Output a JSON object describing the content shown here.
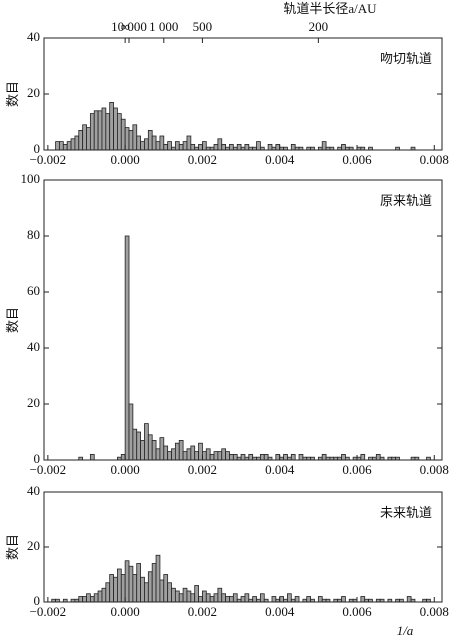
{
  "chart_data": [
    {
      "type": "histogram",
      "label": "吻切轨道",
      "y_label": "数目",
      "x2_label": "轨道半长径a/AU",
      "x2ticks": [
        {
          "value": null,
          "label": "∞"
        },
        {
          "value": 10000,
          "label": "10 000"
        },
        {
          "value": 1000,
          "label": "1 000"
        },
        500,
        200
      ],
      "x2scale": "reciprocal",
      "bins": [
        -0.002,
        -0.0019,
        -0.0018,
        -0.0017,
        -0.0016,
        -0.0015,
        -0.0014,
        -0.0013,
        -0.0012,
        -0.0011,
        -0.001,
        -0.0009,
        -0.0008,
        -0.0007,
        -0.0006,
        -0.0005,
        -0.0004,
        -0.0003,
        -0.0002,
        -0.0001,
        0,
        0.0001,
        0.0002,
        0.0003,
        0.0004,
        0.0005,
        0.0006,
        0.0007,
        0.0008,
        0.0009,
        0.001,
        0.0011,
        0.0012,
        0.0013,
        0.0014,
        0.0015,
        0.0016,
        0.0017,
        0.0018,
        0.0019,
        0.002,
        0.0021,
        0.0022,
        0.0023,
        0.0024,
        0.0025,
        0.0026,
        0.0027,
        0.0028,
        0.0029,
        0.003,
        0.0031,
        0.0032,
        0.0033,
        0.0034,
        0.0035,
        0.0036,
        0.0037,
        0.0038,
        0.0039,
        0.004,
        0.0041,
        0.0042,
        0.0043,
        0.0044,
        0.0045,
        0.0046,
        0.0047,
        0.0048,
        0.0049,
        0.005,
        0.0051,
        0.0052,
        0.0053,
        0.0054,
        0.0055,
        0.0056,
        0.0057,
        0.0058,
        0.0059,
        0.006,
        0.0061,
        0.0062,
        0.0063,
        0.0064,
        0.0065,
        0.0066,
        0.0067,
        0.0068,
        0.0069,
        0.007,
        0.0071,
        0.0072,
        0.0073,
        0.0074,
        0.0075,
        0.0076,
        0.0077,
        0.0078,
        0.0079,
        0.008
      ],
      "values": [
        0,
        0,
        3,
        3,
        2,
        3,
        4,
        5,
        7,
        9,
        8,
        13,
        14,
        14,
        15,
        13,
        17,
        15,
        13,
        11,
        8,
        7,
        9,
        5,
        3,
        4,
        7,
        5,
        3,
        5,
        2,
        3,
        1,
        3,
        2,
        3,
        5,
        2,
        1,
        2,
        3,
        1,
        1,
        2,
        4,
        2,
        1,
        2,
        1,
        2,
        1,
        2,
        1,
        1,
        3,
        1,
        0,
        2,
        1,
        2,
        1,
        1,
        0,
        2,
        1,
        1,
        0,
        1,
        1,
        0,
        1,
        3,
        1,
        1,
        0,
        1,
        2,
        1,
        1,
        0,
        1,
        1,
        0,
        1,
        0,
        0,
        0,
        0,
        0,
        0,
        1,
        0,
        0,
        0,
        1,
        0,
        0,
        0,
        0,
        0
      ],
      "color": "#a0a0a0",
      "xlim": [
        -0.0021,
        0.0082
      ],
      "ylim": [
        0,
        40
      ],
      "yticks": [
        0,
        20,
        40
      ],
      "xticks": [
        {
          "value": -0.002,
          "label": "−0.002"
        },
        {
          "value": 0,
          "label": "0.000"
        },
        0.002,
        0.004,
        0.006,
        0.008
      ]
    },
    {
      "type": "histogram",
      "label": "原来轨道",
      "y_label": "数目",
      "bins": [
        -0.002,
        -0.0019,
        -0.0018,
        -0.0017,
        -0.0016,
        -0.0015,
        -0.0014,
        -0.0013,
        -0.0012,
        -0.0011,
        -0.001,
        -0.0009,
        -0.0008,
        -0.0007,
        -0.0006,
        -0.0005,
        -0.0004,
        -0.0003,
        -0.0002,
        -0.0001,
        0,
        0.0001,
        0.0002,
        0.0003,
        0.0004,
        0.0005,
        0.0006,
        0.0007,
        0.0008,
        0.0009,
        0.001,
        0.0011,
        0.0012,
        0.0013,
        0.0014,
        0.0015,
        0.0016,
        0.0017,
        0.0018,
        0.0019,
        0.002,
        0.0021,
        0.0022,
        0.0023,
        0.0024,
        0.0025,
        0.0026,
        0.0027,
        0.0028,
        0.0029,
        0.003,
        0.0031,
        0.0032,
        0.0033,
        0.0034,
        0.0035,
        0.0036,
        0.0037,
        0.0038,
        0.0039,
        0.004,
        0.0041,
        0.0042,
        0.0043,
        0.0044,
        0.0045,
        0.0046,
        0.0047,
        0.0048,
        0.0049,
        0.005,
        0.0051,
        0.0052,
        0.0053,
        0.0054,
        0.0055,
        0.0056,
        0.0057,
        0.0058,
        0.0059,
        0.006,
        0.0061,
        0.0062,
        0.0063,
        0.0064,
        0.0065,
        0.0066,
        0.0067,
        0.0068,
        0.0069,
        0.007,
        0.0071,
        0.0072,
        0.0073,
        0.0074,
        0.0075,
        0.0076,
        0.0077,
        0.0078,
        0.0079,
        0.008
      ],
      "values": [
        0,
        0,
        0,
        0,
        0,
        0,
        0,
        0,
        1,
        0,
        0,
        2,
        0,
        0,
        0,
        0,
        0,
        0,
        1,
        2,
        80,
        20,
        11,
        10,
        7,
        13,
        9,
        7,
        4,
        8,
        5,
        3,
        4,
        6,
        7,
        3,
        4,
        5,
        3,
        6,
        3,
        4,
        2,
        3,
        3,
        4,
        3,
        2,
        2,
        1,
        2,
        1,
        2,
        1,
        1,
        2,
        2,
        1,
        0,
        2,
        1,
        2,
        1,
        2,
        0,
        2,
        1,
        1,
        1,
        0,
        1,
        2,
        1,
        1,
        1,
        1,
        2,
        1,
        0,
        1,
        1,
        2,
        0,
        1,
        1,
        2,
        1,
        0,
        1,
        1,
        1,
        0,
        0,
        0,
        1,
        1,
        0,
        0,
        1,
        0
      ],
      "color": "#a0a0a0",
      "xlim": [
        -0.0021,
        0.0082
      ],
      "ylim": [
        0,
        100
      ],
      "yticks": [
        0,
        20,
        40,
        60,
        80,
        100
      ],
      "xticks": [
        {
          "value": -0.002,
          "label": "−0.002"
        },
        {
          "value": 0,
          "label": "0.000"
        },
        0.002,
        0.004,
        0.006,
        0.008
      ]
    },
    {
      "type": "histogram",
      "label": "未来轨道",
      "y_label": "数目",
      "x_label": "1/a",
      "bins": [
        -0.002,
        -0.0019,
        -0.0018,
        -0.0017,
        -0.0016,
        -0.0015,
        -0.0014,
        -0.0013,
        -0.0012,
        -0.0011,
        -0.001,
        -0.0009,
        -0.0008,
        -0.0007,
        -0.0006,
        -0.0005,
        -0.0004,
        -0.0003,
        -0.0002,
        -0.0001,
        0,
        0.0001,
        0.0002,
        0.0003,
        0.0004,
        0.0005,
        0.0006,
        0.0007,
        0.0008,
        0.0009,
        0.001,
        0.0011,
        0.0012,
        0.0013,
        0.0014,
        0.0015,
        0.0016,
        0.0017,
        0.0018,
        0.0019,
        0.002,
        0.0021,
        0.0022,
        0.0023,
        0.0024,
        0.0025,
        0.0026,
        0.0027,
        0.0028,
        0.0029,
        0.003,
        0.0031,
        0.0032,
        0.0033,
        0.0034,
        0.0035,
        0.0036,
        0.0037,
        0.0038,
        0.0039,
        0.004,
        0.0041,
        0.0042,
        0.0043,
        0.0044,
        0.0045,
        0.0046,
        0.0047,
        0.0048,
        0.0049,
        0.005,
        0.0051,
        0.0052,
        0.0053,
        0.0054,
        0.0055,
        0.0056,
        0.0057,
        0.0058,
        0.0059,
        0.006,
        0.0061,
        0.0062,
        0.0063,
        0.0064,
        0.0065,
        0.0066,
        0.0067,
        0.0068,
        0.0069,
        0.007,
        0.0071,
        0.0072,
        0.0073,
        0.0074,
        0.0075,
        0.0076,
        0.0077,
        0.0078,
        0.0079,
        0.008
      ],
      "values": [
        0,
        1,
        1,
        0,
        1,
        0,
        1,
        1,
        2,
        2,
        3,
        2,
        3,
        4,
        5,
        7,
        10,
        9,
        12,
        10,
        15,
        13,
        10,
        14,
        9,
        7,
        11,
        14,
        17,
        8,
        10,
        7,
        5,
        4,
        3,
        5,
        4,
        3,
        6,
        2,
        4,
        3,
        2,
        3,
        5,
        3,
        2,
        2,
        3,
        1,
        2,
        3,
        1,
        2,
        1,
        3,
        1,
        0,
        2,
        1,
        2,
        1,
        3,
        1,
        2,
        0,
        1,
        2,
        1,
        0,
        2,
        1,
        1,
        0,
        1,
        1,
        2,
        0,
        1,
        1,
        0,
        2,
        1,
        1,
        0,
        1,
        1,
        0,
        1,
        0,
        1,
        1,
        0,
        2,
        1,
        0,
        0,
        1,
        1,
        0
      ],
      "color": "#a0a0a0",
      "xlim": [
        -0.0021,
        0.0082
      ],
      "ylim": [
        0,
        40
      ],
      "yticks": [
        0,
        20,
        40
      ],
      "xticks": [
        {
          "value": -0.002,
          "label": "−0.002"
        },
        {
          "value": 0,
          "label": "0.000"
        },
        0.002,
        0.004,
        0.006,
        0.008
      ]
    }
  ]
}
